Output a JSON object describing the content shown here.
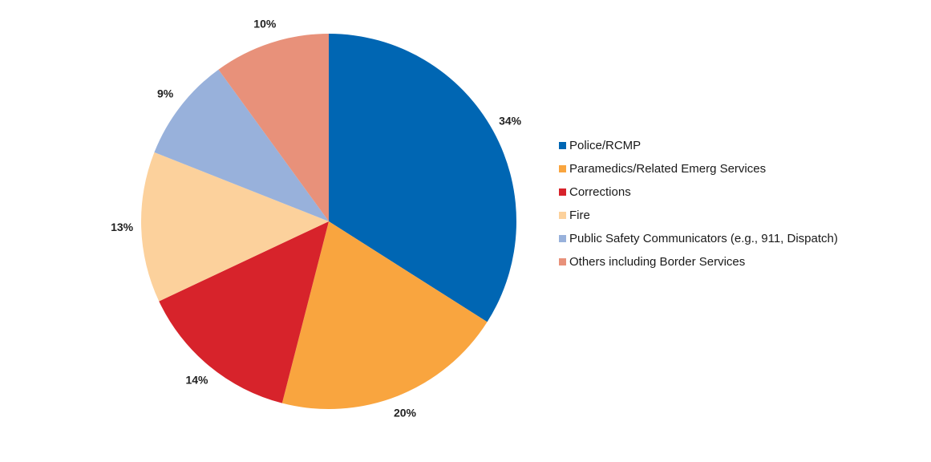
{
  "chart_data": {
    "type": "pie",
    "title": "",
    "legend_position": "right",
    "start_angle_deg": 0,
    "direction": "clockwise",
    "slices": [
      {
        "label": "Police/RCMP",
        "value": 34,
        "value_label": "34%",
        "color": "#0066B3"
      },
      {
        "label": "Paramedics/Related Emerg Services",
        "value": 20,
        "value_label": "20%",
        "color": "#F9A53F"
      },
      {
        "label": "Corrections",
        "value": 14,
        "value_label": "14%",
        "color": "#D7232B"
      },
      {
        "label": "Fire",
        "value": 13,
        "value_label": "13%",
        "color": "#FCD19C"
      },
      {
        "label": "Public Safety Communicators (e.g., 911, Dispatch)",
        "value": 9,
        "value_label": "9%",
        "color": "#98B1DB"
      },
      {
        "label": "Others including Border Services",
        "value": 10,
        "value_label": "10%",
        "color": "#E8917A"
      }
    ]
  }
}
